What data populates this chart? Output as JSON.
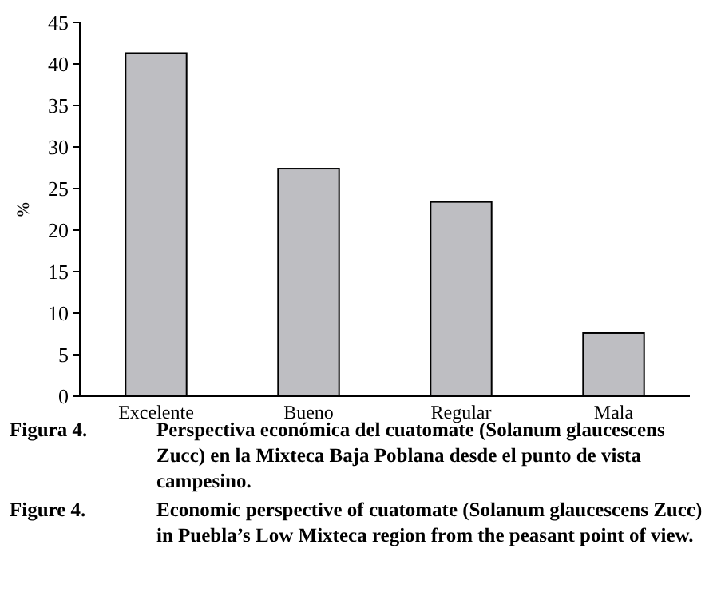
{
  "chart_data": {
    "type": "bar",
    "ylabel": "%",
    "categories": [
      "Excelente",
      "Bueno",
      "Regular",
      "Mala"
    ],
    "values": [
      41.3,
      27.4,
      23.4,
      7.6
    ],
    "color": "#bebec2",
    "ylim": [
      0,
      45
    ],
    "yticks": [
      0,
      5,
      10,
      15,
      20,
      25,
      30,
      35,
      40,
      45
    ],
    "grid": false,
    "annotations": [
      "Figura 4. Perspectiva económica del cuatomate (Solanum glaucescens Zucc) en la Mixteca Baja Poblana desde el punto de vista campesino.",
      "Figure 4. Economic perspective of cuatomate (Solanum glaucescens Zucc) in Puebla’s Low Mixteca region from the peasant point of view."
    ]
  }
}
